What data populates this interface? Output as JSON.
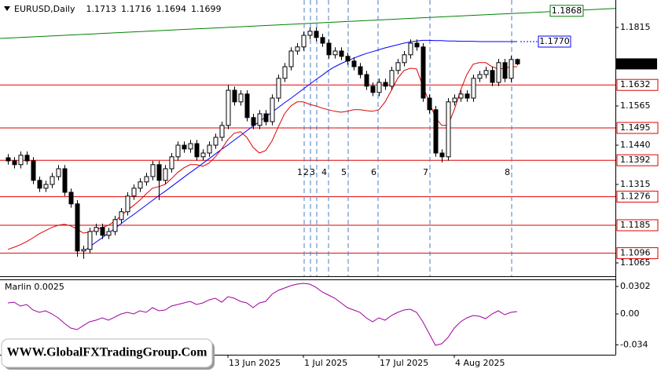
{
  "chart_data": {
    "type": "candlestick",
    "title": "EURUSD,Daily",
    "categories": [
      null,
      null,
      null,
      null,
      null,
      null,
      null,
      null,
      null,
      null,
      null,
      null,
      null,
      null,
      null,
      null,
      null,
      null,
      null,
      null,
      null,
      null,
      null,
      null,
      null,
      null,
      null,
      null,
      null,
      null,
      null,
      null,
      null,
      null,
      null,
      "13 Jun 2025",
      null,
      null,
      null,
      null,
      null,
      null,
      null,
      null,
      null,
      null,
      null,
      "1 Jul 2025",
      null,
      null,
      null,
      null,
      null,
      null,
      null,
      null,
      null,
      null,
      null,
      "17 Jul 2025",
      null,
      null,
      null,
      null,
      null,
      null,
      null,
      null,
      null,
      null,
      null,
      "4 Aug 2025",
      null,
      null,
      null,
      null,
      null,
      null,
      null,
      null,
      null,
      null
    ],
    "open": [
      1.14,
      1.139,
      1.1378,
      1.1408,
      1.139,
      1.1328,
      1.1303,
      1.1315,
      1.134,
      1.1365,
      1.129,
      1.1253,
      1.1103,
      1.1108,
      1.1165,
      1.1178,
      1.1153,
      1.1165,
      1.1203,
      1.1228,
      1.1278,
      1.1303,
      1.1323,
      1.134,
      1.1378,
      1.1328,
      1.1365,
      1.1403,
      1.144,
      1.1428,
      1.1445,
      1.1403,
      1.1415,
      1.144,
      1.1465,
      1.1503,
      1.1615,
      1.1578,
      1.1603,
      1.1528,
      1.1503,
      1.154,
      1.1515,
      1.159,
      1.1653,
      1.169,
      1.174,
      1.1753,
      1.179,
      1.1803,
      1.1783,
      1.1765,
      1.1728,
      1.174,
      1.1723,
      1.1708,
      1.169,
      1.1665,
      1.1628,
      1.1608,
      1.164,
      1.1628,
      1.1678,
      1.1703,
      1.1728,
      1.1765,
      1.1753,
      1.159,
      1.1553,
      1.1415,
      1.1403,
      1.1578,
      1.159,
      1.1603,
      1.159,
      1.1653,
      1.1665,
      1.1678,
      1.164,
      1.1703,
      1.1653,
      1.1713
    ],
    "high": [
      1.1412,
      1.1402,
      1.142,
      1.142,
      1.1402,
      1.134,
      1.1327,
      1.1352,
      1.1377,
      1.1377,
      1.1302,
      1.1265,
      1.112,
      1.1177,
      1.119,
      1.119,
      1.1177,
      1.1215,
      1.124,
      1.129,
      1.1315,
      1.1335,
      1.1352,
      1.139,
      1.139,
      1.1377,
      1.1415,
      1.1452,
      1.1452,
      1.1457,
      1.1457,
      1.1427,
      1.1452,
      1.1477,
      1.1515,
      1.1632,
      1.1627,
      1.1615,
      1.1615,
      1.154,
      1.1552,
      1.1552,
      1.1602,
      1.1665,
      1.1702,
      1.1752,
      1.1765,
      1.1802,
      1.1815,
      1.1815,
      1.1795,
      1.1777,
      1.1752,
      1.1752,
      1.1735,
      1.172,
      1.1702,
      1.1677,
      1.164,
      1.1652,
      1.1652,
      1.169,
      1.1715,
      1.174,
      1.1777,
      1.1777,
      1.1765,
      1.1602,
      1.1565,
      1.1427,
      1.159,
      1.1602,
      1.1615,
      1.1615,
      1.1665,
      1.1677,
      1.169,
      1.169,
      1.1715,
      1.1715,
      1.1725,
      1.1716
    ],
    "low": [
      1.1378,
      1.1366,
      1.1366,
      1.1378,
      1.1316,
      1.1291,
      1.1291,
      1.1303,
      1.1328,
      1.1278,
      1.1241,
      1.1085,
      1.1078,
      1.1096,
      1.1153,
      1.1141,
      1.1141,
      1.1153,
      1.1191,
      1.1216,
      1.1266,
      1.1291,
      1.1311,
      1.1328,
      1.1265,
      1.1316,
      1.1353,
      1.1391,
      1.1416,
      1.1416,
      1.1391,
      1.1391,
      1.1403,
      1.1428,
      1.1453,
      1.1491,
      1.1566,
      1.1566,
      1.1516,
      1.1491,
      1.1491,
      1.1503,
      1.1503,
      1.1578,
      1.1641,
      1.1678,
      1.1728,
      1.1741,
      1.1778,
      1.1771,
      1.1753,
      1.1716,
      1.1716,
      1.1711,
      1.1696,
      1.1678,
      1.1653,
      1.1616,
      1.1596,
      1.1596,
      1.1616,
      1.1616,
      1.1666,
      1.1691,
      1.1716,
      1.1741,
      1.1578,
      1.1541,
      1.1403,
      1.1385,
      1.1391,
      1.1566,
      1.1578,
      1.1578,
      1.1578,
      1.1641,
      1.1653,
      1.1628,
      1.1628,
      1.1641,
      1.1641,
      1.1694
    ],
    "close": [
      1.139,
      1.1378,
      1.1408,
      1.139,
      1.1328,
      1.1303,
      1.1315,
      1.134,
      1.1365,
      1.129,
      1.1253,
      1.1103,
      1.1108,
      1.1165,
      1.1178,
      1.1153,
      1.1165,
      1.1203,
      1.1228,
      1.1278,
      1.1303,
      1.1323,
      1.134,
      1.1378,
      1.1328,
      1.1365,
      1.1403,
      1.144,
      1.1428,
      1.1445,
      1.1403,
      1.1415,
      1.144,
      1.1465,
      1.1503,
      1.1615,
      1.1578,
      1.1603,
      1.1528,
      1.1503,
      1.154,
      1.1515,
      1.159,
      1.1653,
      1.169,
      1.174,
      1.1753,
      1.179,
      1.1803,
      1.1783,
      1.1765,
      1.1728,
      1.174,
      1.1723,
      1.1708,
      1.169,
      1.1665,
      1.1628,
      1.1608,
      1.164,
      1.1628,
      1.1678,
      1.1703,
      1.1728,
      1.1765,
      1.1753,
      1.159,
      1.1553,
      1.1415,
      1.1403,
      1.1578,
      1.159,
      1.1603,
      1.159,
      1.1653,
      1.1665,
      1.1678,
      1.164,
      1.1703,
      1.1653,
      1.1713,
      1.1699
    ],
    "overlays": [
      {
        "color": "#0000ff",
        "values": [
          null,
          null,
          null,
          null,
          null,
          null,
          null,
          null,
          null,
          null,
          null,
          null,
          1.1101,
          1.1116,
          1.1131,
          1.1145,
          1.116,
          1.1175,
          1.119,
          1.1205,
          1.1219,
          1.1234,
          1.1249,
          1.1264,
          1.1279,
          1.1293,
          1.1308,
          1.1323,
          1.1338,
          1.1353,
          1.1367,
          1.1382,
          1.1397,
          1.1412,
          1.1427,
          1.1441,
          1.1456,
          1.1471,
          1.1486,
          1.1501,
          1.1515,
          1.153,
          1.1545,
          1.156,
          1.1575,
          1.1589,
          1.1604,
          1.1619,
          1.1634,
          1.1649,
          1.1663,
          1.1678,
          1.169,
          1.17,
          1.1709,
          1.1717,
          1.1725,
          1.1732,
          1.1738,
          1.1744,
          1.175,
          1.1755,
          1.176,
          1.1765,
          1.1769,
          1.1772,
          1.1774,
          1.1774,
          1.1773,
          1.1773,
          1.1772,
          1.1772,
          1.1771,
          1.1771,
          1.1771,
          1.177,
          1.177,
          1.177,
          1.177,
          1.177,
          1.177,
          1.177
        ]
      },
      {
        "color": "#e00000",
        "values": [
          1.1108,
          1.1115,
          1.1123,
          1.1133,
          1.1145,
          1.1158,
          1.1168,
          1.1178,
          1.1185,
          1.1188,
          1.1183,
          1.1173,
          1.116,
          1.1163,
          1.117,
          1.1178,
          1.1185,
          1.1198,
          1.1215,
          1.1233,
          1.1248,
          1.1265,
          1.1285,
          1.1303,
          1.1308,
          1.1315,
          1.1333,
          1.1353,
          1.1368,
          1.1378,
          1.1378,
          1.1373,
          1.1383,
          1.1403,
          1.1428,
          1.1458,
          1.1478,
          1.1483,
          1.1465,
          1.1433,
          1.1415,
          1.1423,
          1.1453,
          1.1498,
          1.154,
          1.1565,
          1.1578,
          1.1578,
          1.157,
          1.1565,
          1.1558,
          1.1553,
          1.1548,
          1.1545,
          1.1548,
          1.1553,
          1.1553,
          1.155,
          1.1548,
          1.1553,
          1.1578,
          1.1615,
          1.1653,
          1.1678,
          1.1685,
          1.1683,
          1.1628,
          1.1578,
          1.1528,
          1.1503,
          1.1503,
          1.1553,
          1.1615,
          1.1665,
          1.1698,
          1.1703,
          1.1703,
          1.169,
          1.1683,
          1.1685,
          1.169,
          1.169
        ]
      }
    ],
    "ylim": [
      1.10225,
      1.19025
    ],
    "yticks": [
      1.1815,
      1.1565,
      {
        "value": 1.144,
        "label": "1.1440"
      },
      1.1315,
      1.1065
    ],
    "levels": [
      1.1632,
      1.1495,
      1.1392,
      1.1276,
      1.1185,
      1.1096
    ],
    "level_color": "#e00000",
    "ma_level": {
      "value": 1.177,
      "label": "1.1770"
    },
    "trendline_level": 1.1868,
    "markers": [
      "1",
      "2",
      "3",
      "4",
      "5",
      "6",
      "7",
      "8"
    ],
    "indicator": {
      "name": "Marlin 0.0025",
      "color": "#a000a0",
      "ylim": [
        -0.0449,
        0.038
      ],
      "yticks": [
        0.0302,
        {
          "value": 0,
          "label": "0.00"
        },
        -0.034
      ],
      "values": [
        0.0121,
        0.0129,
        0.0086,
        0.0104,
        0.0043,
        0.0017,
        0.0035,
        0,
        -0.0043,
        -0.0104,
        -0.0155,
        -0.0173,
        -0.0129,
        -0.0086,
        -0.0069,
        -0.0043,
        -0.0069,
        -0.0035,
        0,
        0.0017,
        0,
        0.0035,
        0.0017,
        0.0069,
        0.0035,
        0.0043,
        0.0086,
        0.0104,
        0.0121,
        0.0138,
        0.0104,
        0.0121,
        0.0155,
        0.0173,
        0.0129,
        0.019,
        0.0173,
        0.0138,
        0.0121,
        0.0069,
        0.0121,
        0.0138,
        0.0216,
        0.0259,
        0.0285,
        0.0311,
        0.0328,
        0.0337,
        0.0328,
        0.0293,
        0.0242,
        0.0207,
        0.0173,
        0.0121,
        0.0069,
        0.0043,
        0.0017,
        -0.0043,
        -0.0086,
        -0.0043,
        -0.0069,
        -0.0017,
        0.0017,
        0.0043,
        0.0052,
        0.0017,
        -0.0086,
        -0.0216,
        -0.0345,
        -0.0328,
        -0.0259,
        -0.0155,
        -0.0086,
        -0.0043,
        -0.0017,
        -0.0026,
        -0.0052,
        0,
        0.0035,
        -0.0009,
        0.0017,
        0.0026
      ]
    },
    "watermark": "WWW.GlobalFXTradingGroup.Com"
  }
}
